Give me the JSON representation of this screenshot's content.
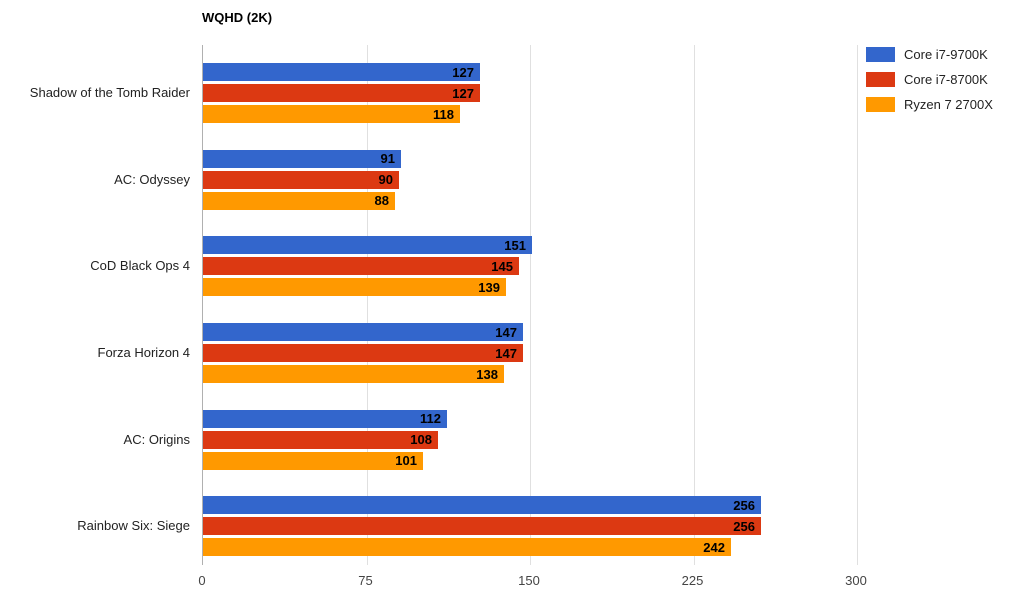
{
  "title": "WQHD (2K)",
  "colors": {
    "background": "#ffffff",
    "axis_line": "#b0b0b0",
    "gridline": "#e0e0e0",
    "tick_label": "#444444",
    "category_label": "#222222",
    "value_label": "#000000"
  },
  "chart_data": {
    "type": "bar",
    "orientation": "horizontal",
    "title": "WQHD (2K)",
    "categories": [
      "Shadow of the Tomb Raider",
      "AC: Odyssey",
      "CoD Black Ops 4",
      "Forza Horizon 4",
      "AC: Origins",
      "Rainbow Six: Siege"
    ],
    "series": [
      {
        "name": "Core i7-9700K",
        "color": "#3366CC",
        "values": [
          127,
          91,
          151,
          147,
          112,
          256
        ]
      },
      {
        "name": "Core i7-8700K",
        "color": "#DC3912",
        "values": [
          127,
          90,
          145,
          147,
          108,
          256
        ]
      },
      {
        "name": "Ryzen 7 2700X",
        "color": "#FF9900",
        "values": [
          118,
          88,
          139,
          138,
          101,
          242
        ]
      }
    ],
    "x_ticks": [
      0,
      75,
      150,
      225,
      300
    ],
    "xlim": [
      0,
      372
    ],
    "xlabel": "",
    "ylabel": "",
    "grid": true,
    "legend_position": "top-right",
    "value_labels": "inside-end"
  }
}
